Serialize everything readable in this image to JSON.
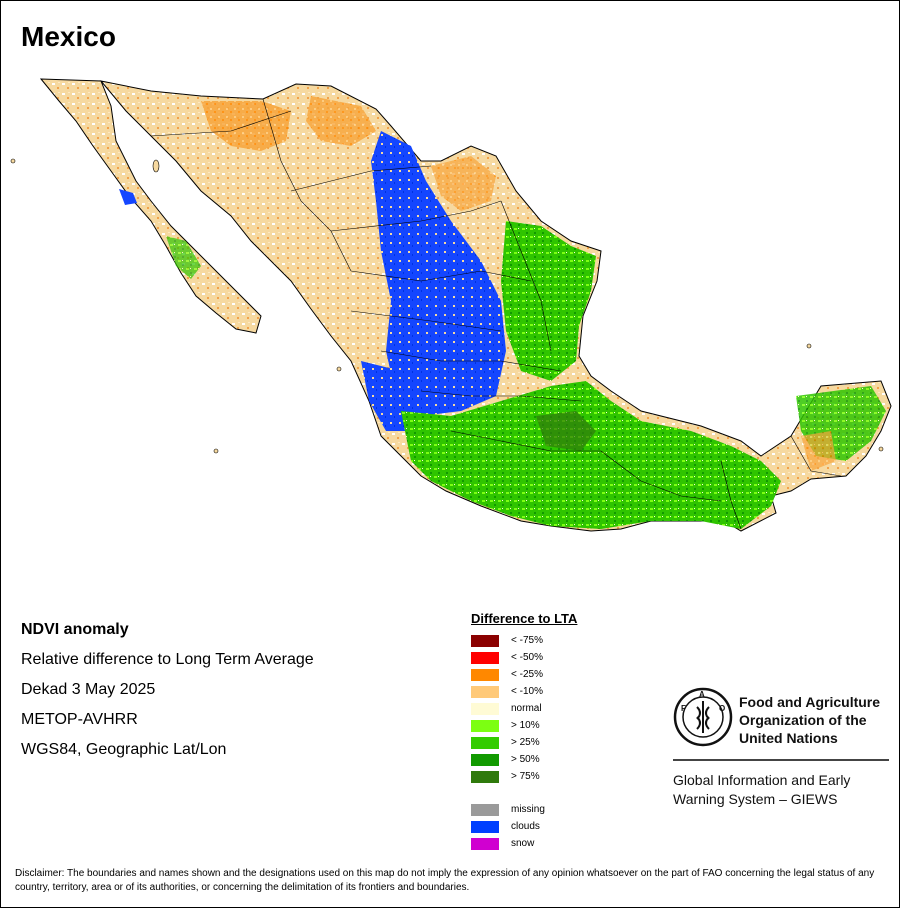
{
  "title": "Mexico",
  "info": {
    "line1": "NDVI anomaly",
    "line2": "Relative difference to Long Term Average",
    "line3": "Dekad 3 May 2025",
    "line4": "METOP-AVHRR",
    "line5": "WGS84, Geographic Lat/Lon"
  },
  "legend": {
    "title": "Difference to LTA",
    "items": [
      {
        "label": "< -75%",
        "color": "#8b0000"
      },
      {
        "label": "< -50%",
        "color": "#ff0000"
      },
      {
        "label": "< -25%",
        "color": "#ff8800"
      },
      {
        "label": "< -10%",
        "color": "#ffc978"
      },
      {
        "label": "normal",
        "color": "#fffbd5"
      },
      {
        "label": "> 10%",
        "color": "#7cff12"
      },
      {
        "label": "> 25%",
        "color": "#33cc00"
      },
      {
        "label": "> 50%",
        "color": "#119a00"
      },
      {
        "label": "> 75%",
        "color": "#2f7a0c"
      }
    ],
    "extra": [
      {
        "label": "missing",
        "color": "#9a9a9a"
      },
      {
        "label": "clouds",
        "color": "#0040ff"
      },
      {
        "label": "snow",
        "color": "#d000d0"
      }
    ]
  },
  "logo": {
    "org_line1": "Food and Agriculture",
    "org_line2": "Organization of the",
    "org_line3": "United Nations",
    "giews_line1": "Global Information and Early",
    "giews_line2": "Warning System – GIEWS",
    "emblem_text": "FAO",
    "motto": "FIAT PANIS"
  },
  "disclaimer": "Disclaimer: The boundaries and names shown and the designations used on this map do not imply the expression of any opinion whatsoever on the part of FAO concerning the legal status of any country, territory, area or of its authorities, or concerning the delimitation of its frontiers and boundaries."
}
